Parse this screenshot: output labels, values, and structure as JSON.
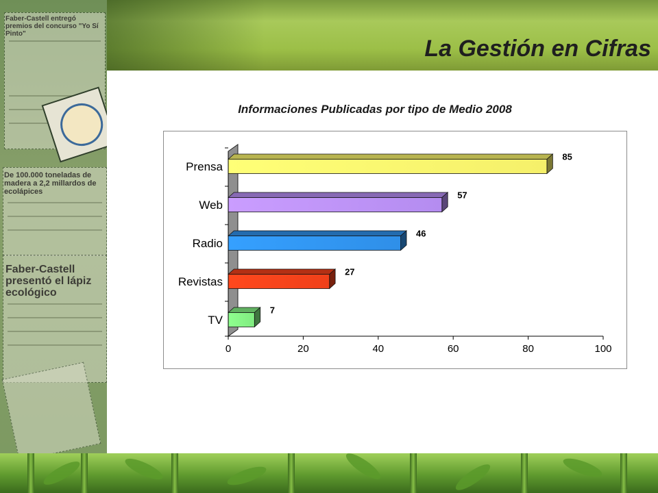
{
  "header": {
    "title": "La Gestión en Cifras"
  },
  "clippings": {
    "headline_1": "Faber-Castell entregó premios del concurso \"Yo Sí Pinto\"",
    "headline_2": "De 100.000 toneladas de madera a 2,2 millardos de ecolápices",
    "headline_3": "Faber-Castell presentó el lápiz ecológico"
  },
  "colors": {
    "prensa": "#f5f06a",
    "web": "#b48cf0",
    "radio": "#2f8fe8",
    "revistas": "#f0401a",
    "tv": "#80ec80"
  },
  "chart_data": {
    "type": "bar",
    "orientation": "horizontal",
    "title": "Informaciones Publicadas por tipo de Medio 2008",
    "categories": [
      "Prensa",
      "Web",
      "Radio",
      "Revistas",
      "TV"
    ],
    "values": [
      85,
      57,
      46,
      27,
      7
    ],
    "xlim": [
      0,
      100
    ],
    "xticks": [
      "0",
      "20",
      "40",
      "60",
      "80",
      "100"
    ],
    "xlabel": "",
    "ylabel": "",
    "grid": false,
    "legend": "none"
  }
}
